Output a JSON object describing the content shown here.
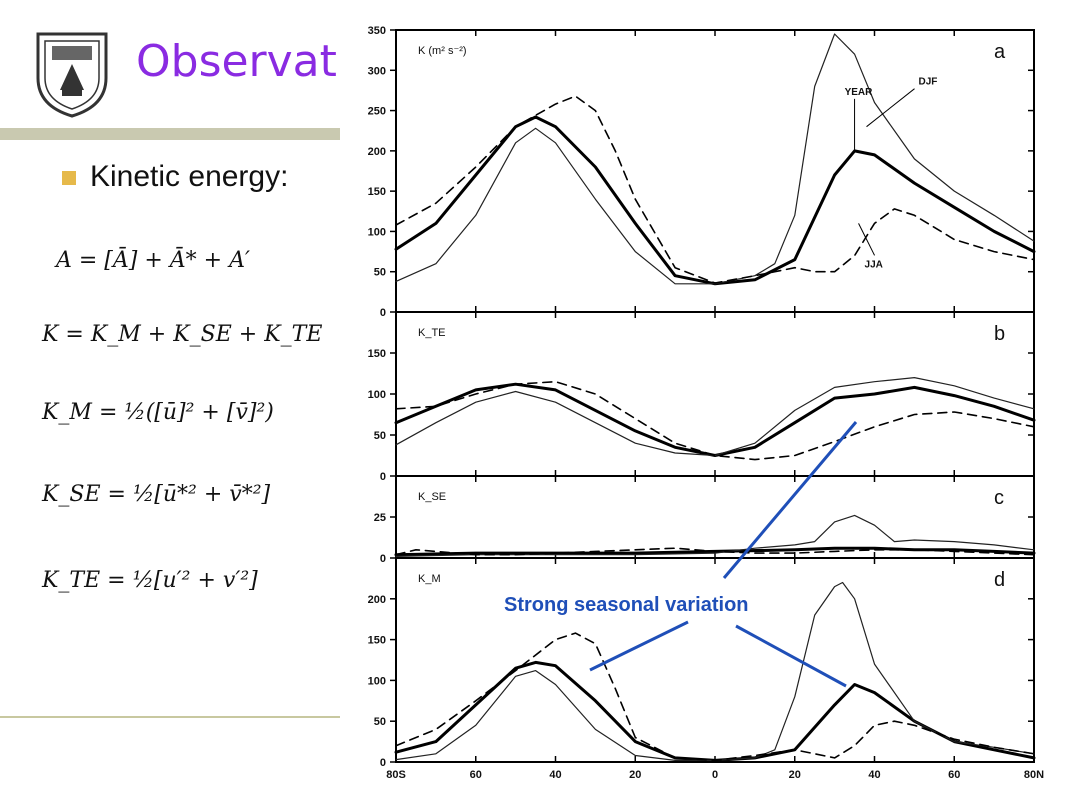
{
  "slide": {
    "title": "Observat",
    "bullet": "Kinetic energy:",
    "equations": [
      "A = [Ā] + Ā* + A′",
      "K = K_M + K_SE + K_TE",
      "K_M = ½([ū]² + [v̄]²)",
      "K_SE = ½[ū*² + v̄*²]",
      "K_TE = ½[u′² + v′²]"
    ],
    "annotation": "Strong seasonal variation",
    "colors": {
      "title": "#8a2be2",
      "annotation": "#1f4fb8",
      "bullet": "#e6b94a"
    }
  },
  "chart_data": {
    "type": "line",
    "x_ticks": [
      -80,
      -60,
      -40,
      -20,
      0,
      20,
      40,
      60,
      80
    ],
    "x_tick_labels": [
      "80S",
      "60",
      "40",
      "20",
      "0",
      "20",
      "40",
      "60",
      "80N"
    ],
    "panels": [
      {
        "label": "a",
        "ylabel": "K (m² s⁻²)",
        "ylim": [
          0,
          350
        ],
        "yticks": [
          0,
          50,
          100,
          150,
          200,
          250,
          300,
          350
        ],
        "series": [
          {
            "name": "YEAR",
            "style": "thick",
            "x": [
              -80,
              -70,
              -60,
              -50,
              -45,
              -40,
              -30,
              -20,
              -10,
              0,
              10,
              20,
              30,
              35,
              40,
              50,
              60,
              70,
              80
            ],
            "y": [
              78,
              110,
              170,
              230,
              242,
              230,
              180,
              110,
              45,
              35,
              40,
              65,
              170,
              200,
              195,
              160,
              130,
              100,
              75
            ]
          },
          {
            "name": "DJF",
            "style": "thin",
            "x": [
              -80,
              -70,
              -60,
              -50,
              -45,
              -40,
              -30,
              -20,
              -10,
              0,
              10,
              15,
              20,
              25,
              30,
              35,
              40,
              50,
              60,
              70,
              80
            ],
            "y": [
              38,
              60,
              120,
              210,
              228,
              210,
              140,
              75,
              35,
              35,
              45,
              60,
              120,
              280,
              345,
              320,
              260,
              190,
              150,
              120,
              88
            ]
          },
          {
            "name": "JJA",
            "style": "dashed",
            "x": [
              -80,
              -70,
              -60,
              -50,
              -40,
              -35,
              -30,
              -25,
              -20,
              -10,
              0,
              10,
              15,
              20,
              25,
              30,
              35,
              40,
              45,
              50,
              60,
              70,
              80
            ],
            "y": [
              108,
              135,
              180,
              230,
              258,
              268,
              250,
              200,
              140,
              55,
              36,
              45,
              50,
              55,
              50,
              50,
              70,
              110,
              128,
              120,
              90,
              75,
              65
            ]
          }
        ],
        "annotations": [
          {
            "text": "YEAR",
            "xy": [
              35,
              200
            ]
          },
          {
            "text": "DJF",
            "xy": [
              38,
              230
            ]
          },
          {
            "text": "JJA",
            "xy": [
              36,
              110
            ]
          }
        ]
      },
      {
        "label": "b",
        "ylabel": "K_TE",
        "ylim": [
          0,
          200
        ],
        "yticks": [
          0,
          50,
          100,
          150
        ],
        "series": [
          {
            "name": "YEAR",
            "style": "thick",
            "x": [
              -80,
              -70,
              -60,
              -50,
              -40,
              -30,
              -20,
              -10,
              0,
              10,
              20,
              30,
              40,
              50,
              60,
              70,
              80
            ],
            "y": [
              65,
              85,
              105,
              112,
              105,
              80,
              55,
              35,
              25,
              35,
              65,
              95,
              100,
              108,
              98,
              85,
              68
            ]
          },
          {
            "name": "DJF",
            "style": "thin",
            "x": [
              -80,
              -70,
              -60,
              -50,
              -40,
              -30,
              -20,
              -10,
              0,
              10,
              20,
              30,
              40,
              50,
              60,
              70,
              80
            ],
            "y": [
              38,
              65,
              90,
              103,
              90,
              65,
              40,
              28,
              25,
              40,
              80,
              108,
              115,
              120,
              110,
              95,
              82
            ]
          },
          {
            "name": "JJA",
            "style": "dashed",
            "x": [
              -80,
              -70,
              -60,
              -50,
              -40,
              -30,
              -20,
              -10,
              0,
              10,
              20,
              30,
              40,
              50,
              60,
              70,
              80
            ],
            "y": [
              82,
              85,
              100,
              112,
              115,
              100,
              70,
              40,
              25,
              20,
              25,
              42,
              60,
              75,
              78,
              70,
              60
            ]
          }
        ]
      },
      {
        "label": "c",
        "ylabel": "K_SE",
        "ylim": [
          0,
          50
        ],
        "yticks": [
          0,
          25
        ],
        "series": [
          {
            "name": "YEAR",
            "style": "thick",
            "x": [
              -80,
              -60,
              -40,
              -20,
              0,
              20,
              30,
              35,
              40,
              50,
              60,
              70,
              80
            ],
            "y": [
              2,
              3,
              3,
              3,
              4,
              5,
              6,
              6,
              6,
              5,
              5,
              4,
              3
            ]
          },
          {
            "name": "DJF",
            "style": "thin",
            "x": [
              -80,
              -60,
              -40,
              -20,
              0,
              10,
              20,
              25,
              30,
              35,
              40,
              45,
              50,
              60,
              70,
              80
            ],
            "y": [
              1,
              2,
              2,
              2,
              3,
              6,
              8,
              10,
              22,
              26,
              20,
              10,
              11,
              10,
              8,
              5
            ]
          },
          {
            "name": "JJA",
            "style": "dashed",
            "x": [
              -80,
              -75,
              -70,
              -60,
              -50,
              -40,
              -30,
              -20,
              -10,
              0,
              10,
              20,
              30,
              40,
              50,
              60,
              70,
              80
            ],
            "y": [
              2,
              5,
              4,
              2,
              2,
              3,
              4,
              5,
              6,
              4,
              3,
              3,
              4,
              5,
              5,
              4,
              3,
              2
            ]
          }
        ]
      },
      {
        "label": "d",
        "ylabel": "K_M",
        "ylim": [
          0,
          250
        ],
        "yticks": [
          0,
          50,
          100,
          150,
          200
        ],
        "series": [
          {
            "name": "YEAR",
            "style": "thick",
            "x": [
              -80,
              -70,
              -60,
              -50,
              -45,
              -40,
              -30,
              -20,
              -10,
              0,
              10,
              20,
              30,
              35,
              40,
              50,
              60,
              70,
              80
            ],
            "y": [
              12,
              25,
              70,
              115,
              122,
              118,
              75,
              25,
              5,
              2,
              5,
              15,
              70,
              95,
              85,
              50,
              25,
              15,
              5
            ]
          },
          {
            "name": "DJF",
            "style": "thin",
            "x": [
              -80,
              -70,
              -60,
              -50,
              -45,
              -40,
              -30,
              -20,
              -10,
              0,
              10,
              15,
              20,
              25,
              30,
              32,
              35,
              40,
              50,
              60,
              70,
              80
            ],
            "y": [
              3,
              10,
              45,
              105,
              112,
              95,
              40,
              8,
              2,
              2,
              5,
              15,
              80,
              180,
              215,
              220,
              200,
              120,
              50,
              25,
              18,
              10
            ]
          },
          {
            "name": "JJA",
            "style": "dashed",
            "x": [
              -80,
              -70,
              -60,
              -50,
              -40,
              -35,
              -30,
              -25,
              -20,
              -10,
              0,
              10,
              20,
              25,
              30,
              35,
              40,
              45,
              50,
              60,
              70,
              80
            ],
            "y": [
              20,
              40,
              75,
              112,
              150,
              158,
              145,
              90,
              30,
              5,
              2,
              8,
              15,
              10,
              5,
              20,
              45,
              50,
              45,
              28,
              18,
              10
            ]
          }
        ]
      }
    ]
  }
}
